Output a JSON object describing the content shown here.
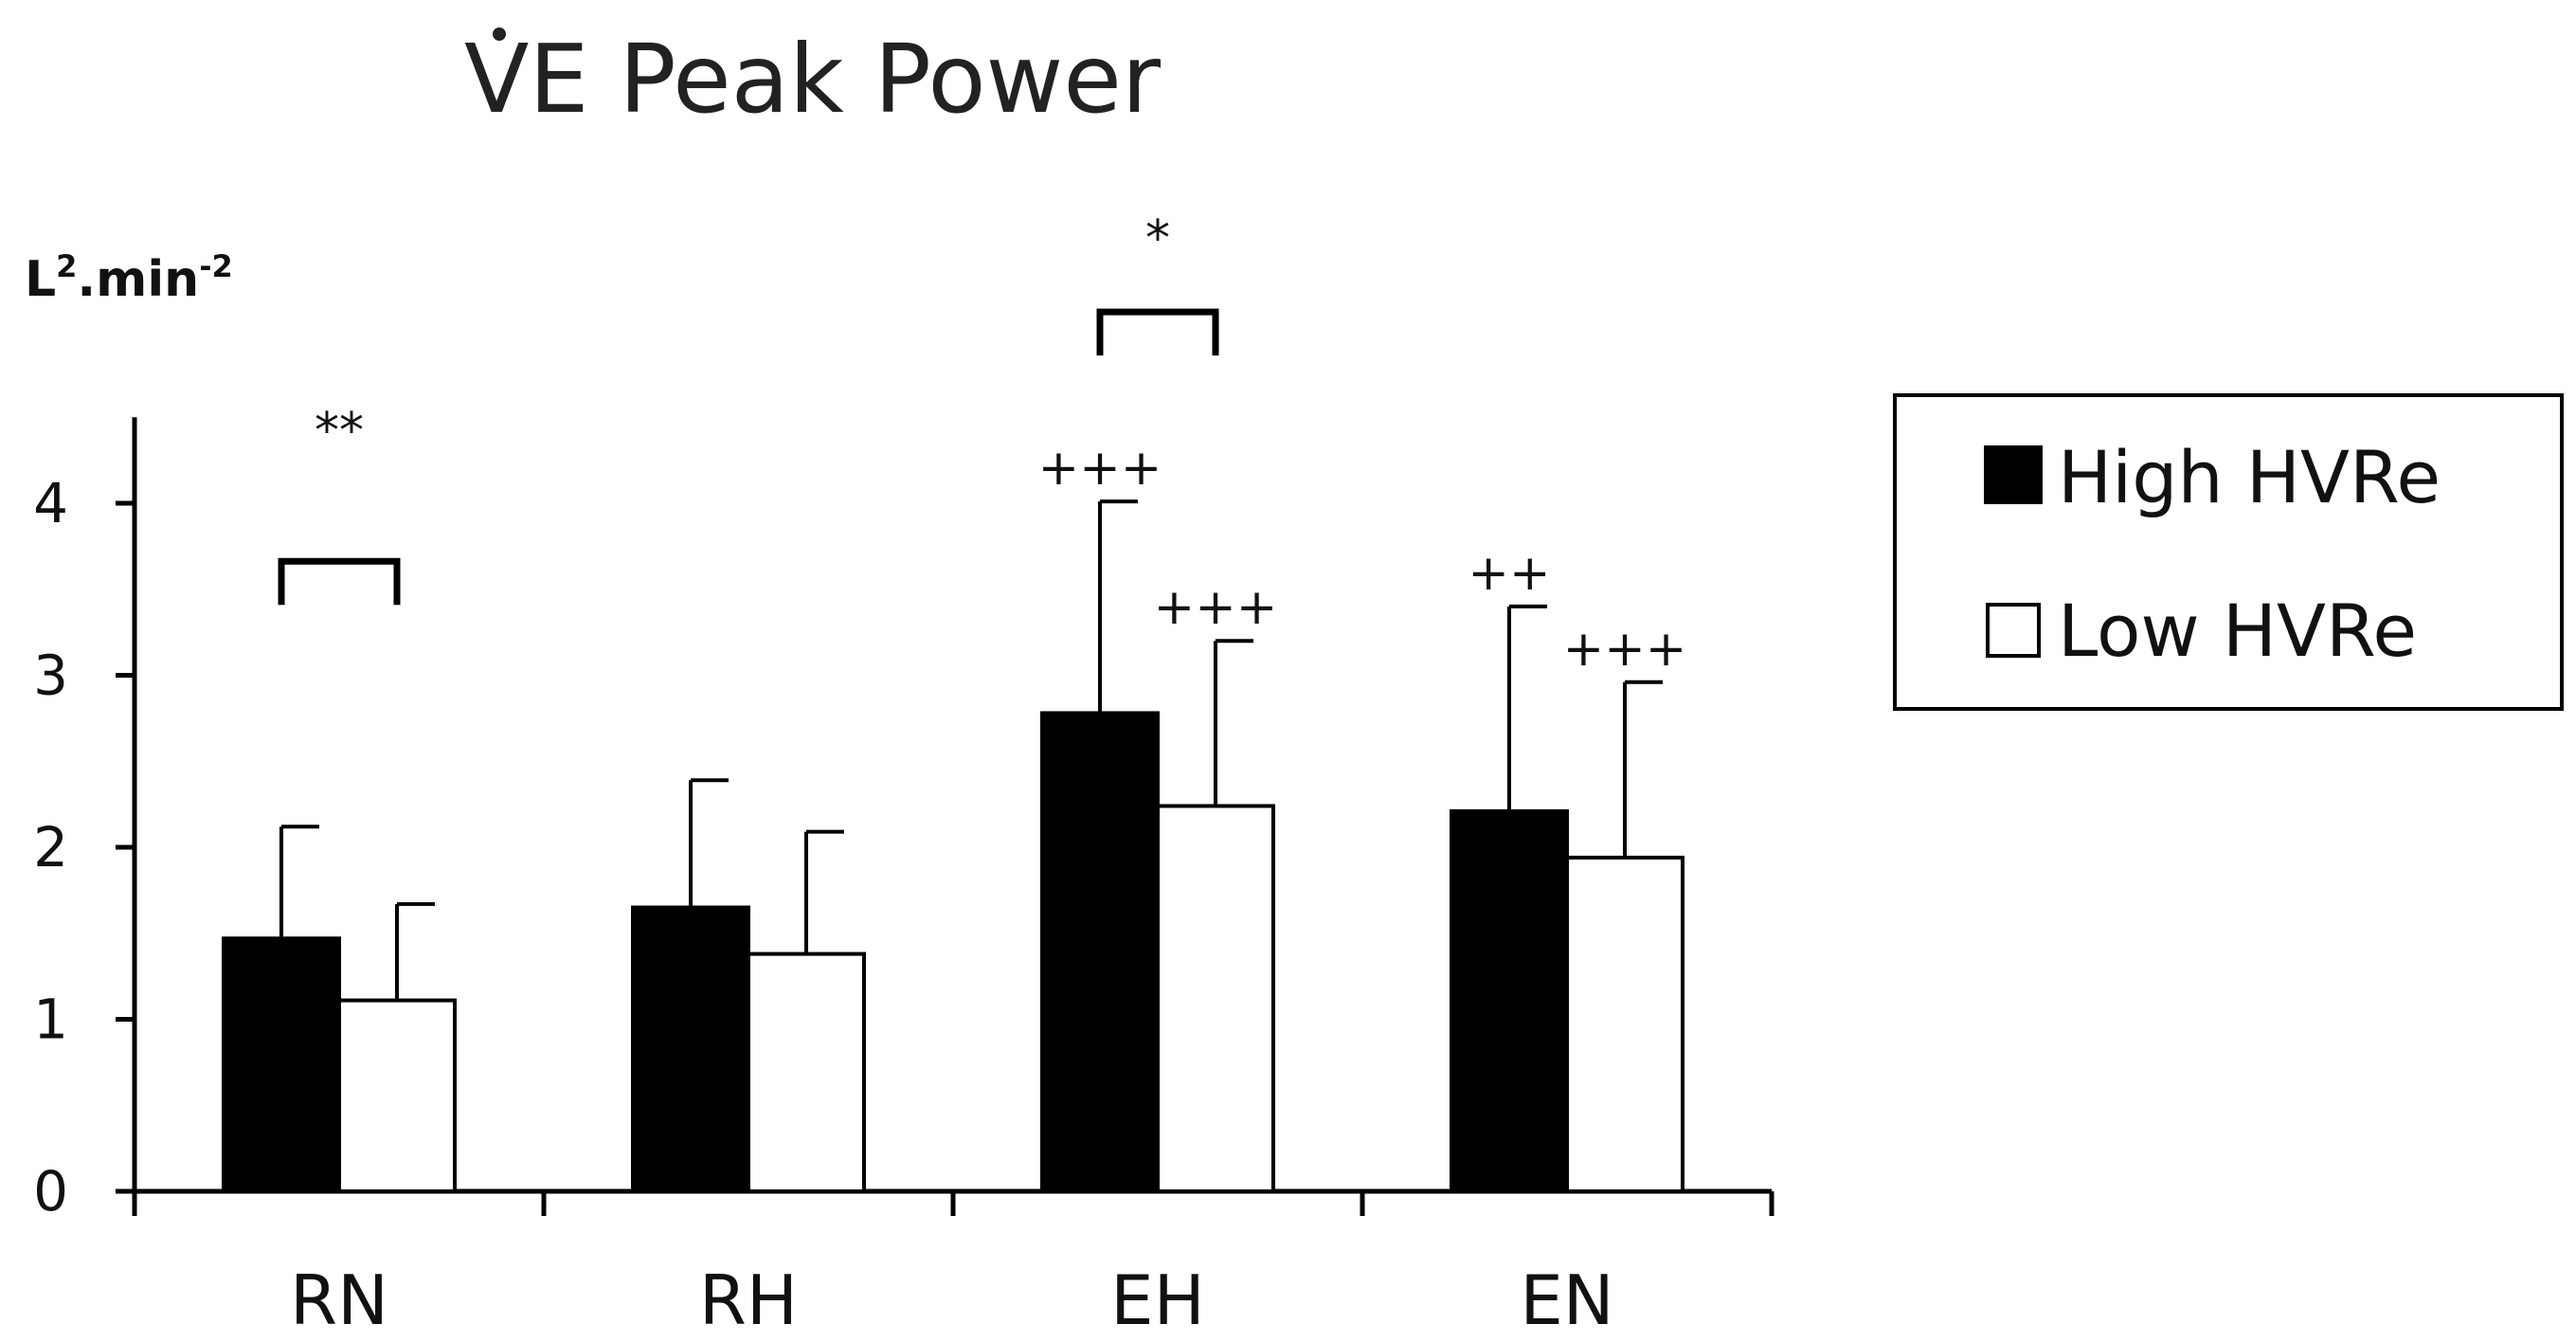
{
  "chart_data": {
    "type": "bar",
    "title": "VE  Peak Power",
    "ylabel": {
      "base": "L",
      "sup1": "2",
      "mid": ".min",
      "sup2": "-2"
    },
    "categories": [
      "RN",
      "RH",
      "EH",
      "EN"
    ],
    "ylim": [
      0,
      4.5
    ],
    "yticks": [
      0,
      1,
      2,
      3,
      4
    ],
    "grid": false,
    "legend_position": "right",
    "series": [
      {
        "name": "High HVRe",
        "color": "#000000",
        "values": [
          1.47,
          1.65,
          2.78,
          2.21
        ],
        "errors": [
          0.65,
          0.74,
          1.23,
          1.19
        ]
      },
      {
        "name": "Low HVRe",
        "color": "#ffffff",
        "values": [
          1.11,
          1.38,
          2.24,
          1.94
        ],
        "errors": [
          0.56,
          0.71,
          0.96,
          1.02
        ]
      }
    ],
    "annotations": {
      "brackets": [
        {
          "category": 0,
          "label": "**"
        },
        {
          "category": 2,
          "label": "*"
        }
      ],
      "marks": [
        {
          "category": 2,
          "series": 0,
          "label": "+++"
        },
        {
          "category": 2,
          "series": 1,
          "label": "+++"
        },
        {
          "category": 3,
          "series": 0,
          "label": "++"
        },
        {
          "category": 3,
          "series": 1,
          "label": "+++"
        }
      ]
    }
  }
}
